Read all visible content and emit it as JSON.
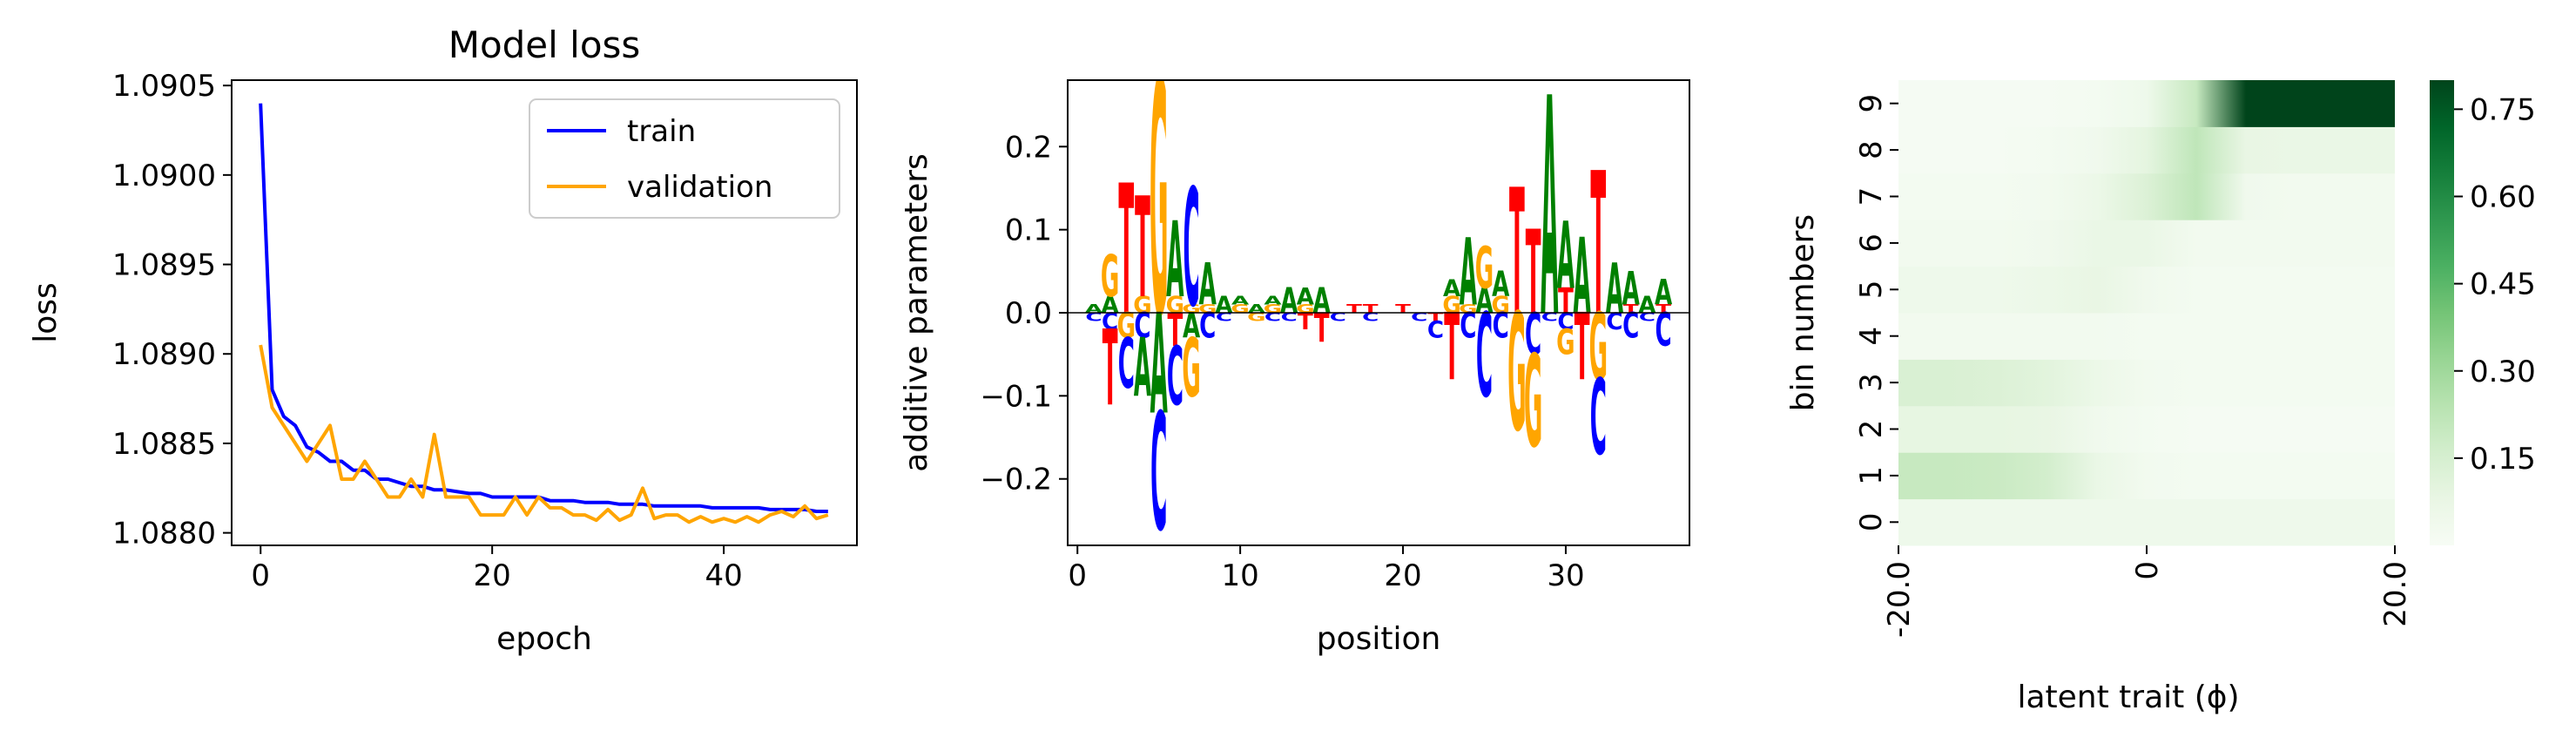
{
  "chart_data": [
    {
      "type": "line",
      "title": "Model loss",
      "xlabel": "epoch",
      "ylabel": "loss",
      "xlim": [
        -2.5,
        51.5
      ],
      "ylim": [
        1.08793,
        1.09053
      ],
      "xticks": [
        "0",
        "20",
        "40"
      ],
      "xtick_values": [
        0,
        20,
        40
      ],
      "yticks": [
        "1.0880",
        "1.0885",
        "1.0890",
        "1.0895",
        "1.0900",
        "1.0905"
      ],
      "ytick_values": [
        1.088,
        1.0885,
        1.089,
        1.0895,
        1.09,
        1.0905
      ],
      "legend_position": "top-right",
      "grid": false,
      "series": [
        {
          "name": "train",
          "color": "#0000ff",
          "x": [
            0,
            1,
            2,
            3,
            4,
            5,
            6,
            7,
            8,
            9,
            10,
            11,
            12,
            13,
            14,
            15,
            16,
            17,
            18,
            19,
            20,
            21,
            22,
            23,
            24,
            25,
            26,
            27,
            28,
            29,
            30,
            31,
            32,
            33,
            34,
            35,
            36,
            37,
            38,
            39,
            40,
            41,
            42,
            43,
            44,
            45,
            46,
            47,
            48,
            49
          ],
          "values": [
            1.0904,
            1.0888,
            1.08865,
            1.0886,
            1.08848,
            1.08845,
            1.0884,
            1.0884,
            1.08835,
            1.08835,
            1.0883,
            1.0883,
            1.08828,
            1.08826,
            1.08826,
            1.08824,
            1.08824,
            1.08823,
            1.08822,
            1.08822,
            1.0882,
            1.0882,
            1.0882,
            1.0882,
            1.0882,
            1.08818,
            1.08818,
            1.08818,
            1.08817,
            1.08817,
            1.08817,
            1.08816,
            1.08816,
            1.08816,
            1.08815,
            1.08815,
            1.08815,
            1.08815,
            1.08815,
            1.08814,
            1.08814,
            1.08814,
            1.08814,
            1.08814,
            1.08813,
            1.08813,
            1.08813,
            1.08813,
            1.08812,
            1.08812
          ]
        },
        {
          "name": "validation",
          "color": "#ffa500",
          "x": [
            0,
            1,
            2,
            3,
            4,
            5,
            6,
            7,
            8,
            9,
            10,
            11,
            12,
            13,
            14,
            15,
            16,
            17,
            18,
            19,
            20,
            21,
            22,
            23,
            24,
            25,
            26,
            27,
            28,
            29,
            30,
            31,
            32,
            33,
            34,
            35,
            36,
            37,
            38,
            39,
            40,
            41,
            42,
            43,
            44,
            45,
            46,
            47,
            48,
            49
          ],
          "values": [
            1.08905,
            1.0887,
            1.0886,
            1.0885,
            1.0884,
            1.0885,
            1.0886,
            1.0883,
            1.0883,
            1.0884,
            1.0883,
            1.0882,
            1.0882,
            1.0883,
            1.0882,
            1.08855,
            1.0882,
            1.0882,
            1.0882,
            1.0881,
            1.0881,
            1.0881,
            1.0882,
            1.0881,
            1.0882,
            1.08814,
            1.08814,
            1.0881,
            1.0881,
            1.08807,
            1.08813,
            1.08807,
            1.0881,
            1.08825,
            1.08808,
            1.0881,
            1.0881,
            1.08806,
            1.08809,
            1.08806,
            1.08808,
            1.08806,
            1.08809,
            1.08806,
            1.0881,
            1.08812,
            1.08809,
            1.08815,
            1.08808,
            1.0881
          ]
        }
      ]
    },
    {
      "type": "logo",
      "xlabel": "position",
      "ylabel": "additive parameters",
      "xlim": [
        -0.6,
        37.6
      ],
      "ylim": [
        -0.28,
        0.28
      ],
      "xticks": [
        "0",
        "10",
        "20",
        "30"
      ],
      "xtick_values": [
        0,
        10,
        20,
        30
      ],
      "yticks": [
        "−0.2",
        "−0.1",
        "0.0",
        "0.1",
        "0.2"
      ],
      "ytick_values": [
        -0.2,
        -0.1,
        0,
        0.1,
        0.2
      ],
      "colors": {
        "A": "#008000",
        "C": "#0000ff",
        "G": "#ffa500",
        "T": "#ff0000"
      },
      "letters": [
        {
          "pos": 1,
          "base": "A",
          "v": 0.01
        },
        {
          "pos": 1,
          "base": "C",
          "v": -0.01
        },
        {
          "pos": 2,
          "base": "G",
          "v": 0.05
        },
        {
          "pos": 2,
          "base": "A",
          "v": 0.02
        },
        {
          "pos": 2,
          "base": "T",
          "v": -0.09
        },
        {
          "pos": 2,
          "base": "C",
          "v": -0.02
        },
        {
          "pos": 3,
          "base": "T",
          "v": 0.155
        },
        {
          "pos": 3,
          "base": "C",
          "v": -0.06
        },
        {
          "pos": 3,
          "base": "G",
          "v": -0.03
        },
        {
          "pos": 4,
          "base": "T",
          "v": 0.12
        },
        {
          "pos": 4,
          "base": "G",
          "v": 0.02
        },
        {
          "pos": 4,
          "base": "C",
          "v": -0.03
        },
        {
          "pos": 4,
          "base": "A",
          "v": -0.07
        },
        {
          "pos": 5,
          "base": "G",
          "v": 0.28
        },
        {
          "pos": 5,
          "base": "C",
          "v": -0.14
        },
        {
          "pos": 5,
          "base": "A",
          "v": -0.12
        },
        {
          "pos": 6,
          "base": "A",
          "v": 0.09
        },
        {
          "pos": 6,
          "base": "G",
          "v": 0.02
        },
        {
          "pos": 6,
          "base": "T",
          "v": -0.04
        },
        {
          "pos": 6,
          "base": "C",
          "v": -0.07
        },
        {
          "pos": 7,
          "base": "C",
          "v": 0.14
        },
        {
          "pos": 7,
          "base": "G",
          "v": 0.01
        },
        {
          "pos": 7,
          "base": "A",
          "v": -0.03
        },
        {
          "pos": 7,
          "base": "G",
          "v": -0.07
        },
        {
          "pos": 8,
          "base": "A",
          "v": 0.05
        },
        {
          "pos": 8,
          "base": "G",
          "v": 0.01
        },
        {
          "pos": 8,
          "base": "C",
          "v": -0.03
        },
        {
          "pos": 9,
          "base": "A",
          "v": 0.02
        },
        {
          "pos": 9,
          "base": "C",
          "v": -0.01
        },
        {
          "pos": 10,
          "base": "G",
          "v": 0.01
        },
        {
          "pos": 10,
          "base": "A",
          "v": 0.01
        },
        {
          "pos": 11,
          "base": "A",
          "v": 0.01
        },
        {
          "pos": 11,
          "base": "G",
          "v": -0.01
        },
        {
          "pos": 12,
          "base": "G",
          "v": 0.01
        },
        {
          "pos": 12,
          "base": "A",
          "v": 0.01
        },
        {
          "pos": 12,
          "base": "C",
          "v": -0.01
        },
        {
          "pos": 13,
          "base": "A",
          "v": 0.03
        },
        {
          "pos": 13,
          "base": "C",
          "v": -0.01
        },
        {
          "pos": 14,
          "base": "A",
          "v": 0.02
        },
        {
          "pos": 14,
          "base": "G",
          "v": 0.01
        },
        {
          "pos": 14,
          "base": "T",
          "v": -0.02
        },
        {
          "pos": 15,
          "base": "A",
          "v": 0.03
        },
        {
          "pos": 15,
          "base": "T",
          "v": -0.035
        },
        {
          "pos": 16,
          "base": "C",
          "v": -0.01
        },
        {
          "pos": 17,
          "base": "T",
          "v": 0.01
        },
        {
          "pos": 18,
          "base": "T",
          "v": 0.01
        },
        {
          "pos": 18,
          "base": "C",
          "v": -0.01
        },
        {
          "pos": 20,
          "base": "T",
          "v": 0.01
        },
        {
          "pos": 21,
          "base": "C",
          "v": -0.01
        },
        {
          "pos": 22,
          "base": "C",
          "v": -0.02
        },
        {
          "pos": 22,
          "base": "T",
          "v": -0.01
        },
        {
          "pos": 23,
          "base": "G",
          "v": 0.02
        },
        {
          "pos": 23,
          "base": "A",
          "v": 0.02
        },
        {
          "pos": 23,
          "base": "T",
          "v": -0.08
        },
        {
          "pos": 24,
          "base": "A",
          "v": 0.08
        },
        {
          "pos": 24,
          "base": "G",
          "v": 0.01
        },
        {
          "pos": 24,
          "base": "C",
          "v": -0.03
        },
        {
          "pos": 25,
          "base": "G",
          "v": 0.05
        },
        {
          "pos": 25,
          "base": "A",
          "v": 0.03
        },
        {
          "pos": 25,
          "base": "C",
          "v": -0.1
        },
        {
          "pos": 26,
          "base": "A",
          "v": 0.03
        },
        {
          "pos": 26,
          "base": "G",
          "v": 0.02
        },
        {
          "pos": 26,
          "base": "C",
          "v": -0.03
        },
        {
          "pos": 27,
          "base": "T",
          "v": 0.15
        },
        {
          "pos": 27,
          "base": "G",
          "v": -0.14
        },
        {
          "pos": 28,
          "base": "T",
          "v": 0.1
        },
        {
          "pos": 28,
          "base": "C",
          "v": -0.05
        },
        {
          "pos": 28,
          "base": "G",
          "v": -0.11
        },
        {
          "pos": 29,
          "base": "A",
          "v": 0.26
        },
        {
          "pos": 29,
          "base": "C",
          "v": -0.01
        },
        {
          "pos": 30,
          "base": "A",
          "v": 0.08
        },
        {
          "pos": 30,
          "base": "T",
          "v": 0.03
        },
        {
          "pos": 30,
          "base": "C",
          "v": -0.02
        },
        {
          "pos": 30,
          "base": "G",
          "v": -0.03
        },
        {
          "pos": 31,
          "base": "A",
          "v": 0.09
        },
        {
          "pos": 31,
          "base": "T",
          "v": -0.08
        },
        {
          "pos": 32,
          "base": "T",
          "v": 0.17
        },
        {
          "pos": 32,
          "base": "C",
          "v": -0.09
        },
        {
          "pos": 32,
          "base": "G",
          "v": -0.08
        },
        {
          "pos": 33,
          "base": "A",
          "v": 0.06
        },
        {
          "pos": 33,
          "base": "C",
          "v": -0.02
        },
        {
          "pos": 34,
          "base": "A",
          "v": 0.04
        },
        {
          "pos": 34,
          "base": "T",
          "v": 0.01
        },
        {
          "pos": 34,
          "base": "C",
          "v": -0.03
        },
        {
          "pos": 35,
          "base": "A",
          "v": 0.02
        },
        {
          "pos": 35,
          "base": "C",
          "v": -0.01
        },
        {
          "pos": 36,
          "base": "A",
          "v": 0.03
        },
        {
          "pos": 36,
          "base": "T",
          "v": 0.01
        },
        {
          "pos": 36,
          "base": "C",
          "v": -0.04
        }
      ]
    },
    {
      "type": "heatmap",
      "xlabel": "latent trait (ϕ)",
      "ylabel": "bin numbers",
      "xticks": [
        "-20.0",
        "0",
        "20.0"
      ],
      "xtick_values": [
        -20,
        0,
        20
      ],
      "yticks": [
        "0",
        "1",
        "2",
        "3",
        "4",
        "5",
        "6",
        "7",
        "8",
        "9"
      ],
      "colormap": "Greens",
      "colorbar_ticks": [
        "0.15",
        "0.30",
        "0.45",
        "0.60",
        "0.75"
      ],
      "colorbar_tick_values": [
        0.15,
        0.3,
        0.45,
        0.6,
        0.75
      ],
      "vmin": 0.0,
      "vmax": 0.8,
      "x": [
        -20,
        -16,
        -12,
        -8,
        -4,
        0,
        4,
        8,
        12,
        16,
        20
      ],
      "rows": [
        {
          "bin": 0,
          "values": [
            0.05,
            0.05,
            0.05,
            0.05,
            0.05,
            0.05,
            0.05,
            0.05,
            0.05,
            0.05,
            0.05
          ]
        },
        {
          "bin": 1,
          "values": [
            0.2,
            0.2,
            0.19,
            0.16,
            0.07,
            0.03,
            0.02,
            0.02,
            0.02,
            0.02,
            0.02
          ]
        },
        {
          "bin": 2,
          "values": [
            0.09,
            0.09,
            0.09,
            0.08,
            0.04,
            0.02,
            0.01,
            0.01,
            0.01,
            0.01,
            0.01
          ]
        },
        {
          "bin": 3,
          "values": [
            0.14,
            0.14,
            0.13,
            0.11,
            0.06,
            0.03,
            0.02,
            0.02,
            0.02,
            0.02,
            0.02
          ]
        },
        {
          "bin": 4,
          "values": [
            0.03,
            0.03,
            0.03,
            0.03,
            0.03,
            0.02,
            0.02,
            0.02,
            0.02,
            0.02,
            0.02
          ]
        },
        {
          "bin": 5,
          "values": [
            0.05,
            0.05,
            0.05,
            0.06,
            0.08,
            0.04,
            0.02,
            0.02,
            0.02,
            0.02,
            0.02
          ]
        },
        {
          "bin": 6,
          "values": [
            0.03,
            0.03,
            0.03,
            0.04,
            0.07,
            0.07,
            0.03,
            0.03,
            0.03,
            0.03,
            0.03
          ]
        },
        {
          "bin": 7,
          "values": [
            0.02,
            0.02,
            0.02,
            0.03,
            0.06,
            0.13,
            0.22,
            0.04,
            0.03,
            0.03,
            0.03
          ]
        },
        {
          "bin": 8,
          "values": [
            0.01,
            0.01,
            0.01,
            0.02,
            0.04,
            0.1,
            0.22,
            0.08,
            0.07,
            0.07,
            0.07
          ]
        },
        {
          "bin": 9,
          "values": [
            0.01,
            0.01,
            0.01,
            0.01,
            0.02,
            0.05,
            0.2,
            0.8,
            0.8,
            0.8,
            0.8
          ]
        }
      ]
    }
  ]
}
